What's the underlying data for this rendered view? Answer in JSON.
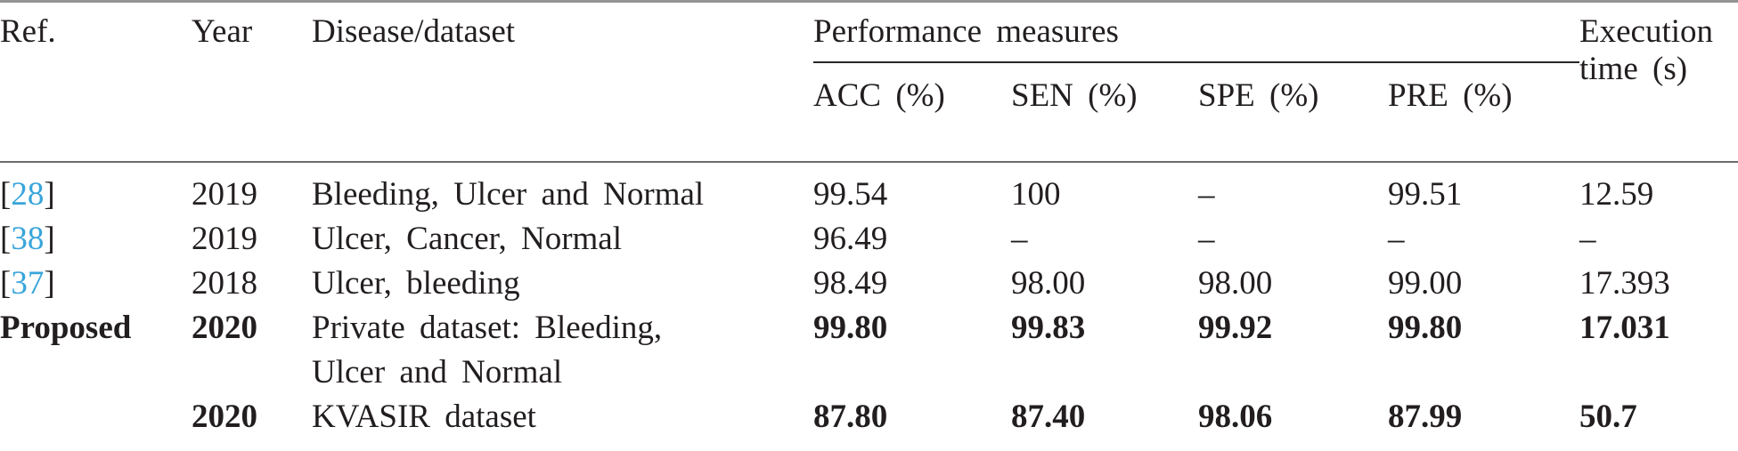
{
  "colors": {
    "citation_link": "#39a5da",
    "text": "#221e1f"
  },
  "header": {
    "ref": "Ref.",
    "year": "Year",
    "disease": "Disease/dataset",
    "performance_group": "Performance measures",
    "acc": "ACC (%)",
    "sen": "SEN (%)",
    "spe": "SPE (%)",
    "pre": "PRE (%)",
    "execution_line1": "Execution",
    "execution_line2": "time (s)"
  },
  "rows": [
    {
      "ref_open": "[",
      "ref_num": "28",
      "ref_close": "]",
      "year": "2019",
      "disease": "Bleeding, Ulcer and Normal",
      "acc": "99.54",
      "sen": "100",
      "spe": "–",
      "pre": "99.51",
      "exec": "12.59"
    },
    {
      "ref_open": "[",
      "ref_num": "38",
      "ref_close": "]",
      "year": "2019",
      "disease": "Ulcer, Cancer, Normal",
      "acc": "96.49",
      "sen": "–",
      "spe": "–",
      "pre": "–",
      "exec": "–"
    },
    {
      "ref_open": "[",
      "ref_num": "37",
      "ref_close": "]",
      "year": "2018",
      "disease": "Ulcer, bleeding",
      "acc": "98.49",
      "sen": "98.00",
      "spe": "98.00",
      "pre": "99.00",
      "exec": "17.393"
    },
    {
      "ref_label": "Proposed",
      "year": "2020",
      "disease_line1": "Private dataset: Bleeding,",
      "disease_line2": "Ulcer and Normal",
      "acc": "99.80",
      "sen": "99.83",
      "spe": "99.92",
      "pre": "99.80",
      "exec": "17.031"
    },
    {
      "ref_label": "",
      "year": "2020",
      "disease": "KVASIR dataset",
      "acc": "87.80",
      "sen": "87.40",
      "spe": "98.06",
      "pre": "87.99",
      "exec": "50.7"
    }
  ]
}
